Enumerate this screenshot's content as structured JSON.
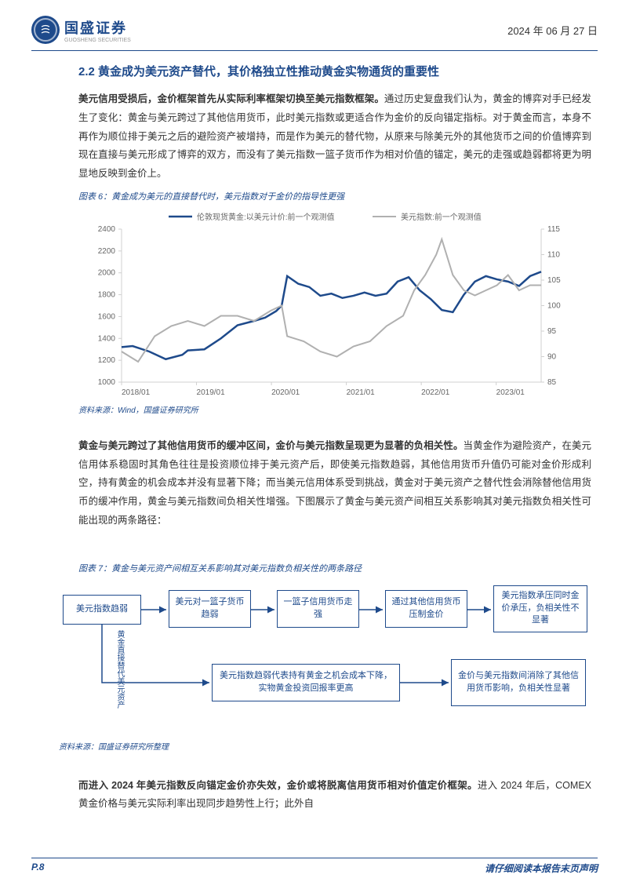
{
  "header": {
    "logo_title": "国盛证券",
    "logo_sub": "GUOSHENG SECURITIES",
    "date": "2024 年 06 月 27 日"
  },
  "section": {
    "title": "2.2 黄金成为美元资产替代，其价格独立性推动黄金实物通货的重要性"
  },
  "para1": {
    "bold": "美元信用受损后，金价框架首先从实际利率框架切换至美元指数框架。",
    "text": "通过历史复盘我们认为，黄金的博弈对手已经发生了变化：黄金与美元跨过了其他信用货币，此时美元指数或更适合作为金价的反向锚定指标。对于黄金而言，本身不再作为顺位排于美元之后的避险资产被增持，而是作为美元的替代物，从原来与除美元外的其他货币之间的价值博弈到现在直接与美元形成了博弈的双方，而没有了美元指数一篮子货币作为相对价值的锚定，美元的走强或趋弱都将更为明显地反映到金价上。"
  },
  "figure6": {
    "caption": "图表 6：黄金成为美元的直接替代时，美元指数对于金价的指导性更强",
    "source": "资料来源：Wind，国盛证券研究所",
    "chart": {
      "type": "line",
      "series": [
        {
          "name": "伦敦现货黄金:以美元计价:前一个观测值",
          "color": "#1e4a8b",
          "width": 2.5
        },
        {
          "name": "美元指数:前一个观测值",
          "color": "#b0b0b0",
          "width": 2
        }
      ],
      "x_labels": [
        "2018/01",
        "2019/01",
        "2020/01",
        "2021/01",
        "2022/01",
        "2023/01"
      ],
      "y_left": {
        "min": 1000,
        "max": 2400,
        "step": 200,
        "ticks": [
          1000,
          1200,
          1400,
          1600,
          1800,
          2000,
          2200,
          2400
        ]
      },
      "y_right": {
        "min": 85,
        "max": 115,
        "step": 5,
        "ticks": [
          85,
          90,
          95,
          100,
          105,
          110,
          115
        ]
      },
      "gold_data": [
        [
          0,
          1320
        ],
        [
          2,
          1330
        ],
        [
          5,
          1280
        ],
        [
          8,
          1210
        ],
        [
          11,
          1250
        ],
        [
          12,
          1290
        ],
        [
          15,
          1300
        ],
        [
          18,
          1400
        ],
        [
          21,
          1520
        ],
        [
          24,
          1560
        ],
        [
          26,
          1590
        ],
        [
          28,
          1650
        ],
        [
          29,
          1700
        ],
        [
          30,
          1970
        ],
        [
          32,
          1900
        ],
        [
          34,
          1870
        ],
        [
          36,
          1790
        ],
        [
          38,
          1810
        ],
        [
          40,
          1770
        ],
        [
          42,
          1790
        ],
        [
          44,
          1820
        ],
        [
          46,
          1790
        ],
        [
          48,
          1810
        ],
        [
          50,
          1920
        ],
        [
          52,
          1960
        ],
        [
          54,
          1840
        ],
        [
          56,
          1760
        ],
        [
          58,
          1660
        ],
        [
          60,
          1640
        ],
        [
          62,
          1800
        ],
        [
          64,
          1920
        ],
        [
          66,
          1970
        ],
        [
          68,
          1940
        ],
        [
          70,
          1920
        ],
        [
          72,
          1880
        ],
        [
          74,
          1970
        ],
        [
          76,
          2010
        ]
      ],
      "dxy_data": [
        [
          0,
          91
        ],
        [
          3,
          89
        ],
        [
          6,
          94
        ],
        [
          9,
          96
        ],
        [
          12,
          97
        ],
        [
          15,
          96
        ],
        [
          18,
          98
        ],
        [
          21,
          98
        ],
        [
          24,
          97
        ],
        [
          27,
          99
        ],
        [
          29,
          100
        ],
        [
          30,
          94
        ],
        [
          33,
          93
        ],
        [
          36,
          91
        ],
        [
          39,
          90
        ],
        [
          42,
          92
        ],
        [
          45,
          93
        ],
        [
          48,
          96
        ],
        [
          51,
          98
        ],
        [
          53,
          103
        ],
        [
          55,
          106
        ],
        [
          57,
          110
        ],
        [
          58,
          113
        ],
        [
          60,
          106
        ],
        [
          62,
          103
        ],
        [
          64,
          102
        ],
        [
          66,
          103
        ],
        [
          68,
          104
        ],
        [
          70,
          106
        ],
        [
          72,
          103
        ],
        [
          74,
          104
        ],
        [
          76,
          104
        ]
      ],
      "x_range": 76,
      "background_color": "#ffffff",
      "axis_color": "#d0d0d0",
      "text_color": "#666666",
      "font_size": 10
    }
  },
  "para2": {
    "bold": "黄金与美元跨过了其他信用货币的缓冲区间，金价与美元指数呈现更为显著的负相关性。",
    "text": "当黄金作为避险资产，在美元信用体系稳固时其角色往往是投资顺位排于美元资产后，即使美元指数趋弱，其他信用货币升值仍可能对金价形成利空，持有黄金的机会成本并没有显著下降；而当美元信用体系受到挑战，黄金对于美元资产之替代性会消除替他信用货币的缓冲作用，黄金与美元指数间负相关性增强。下图展示了黄金与美元资产间相互关系影响其对美元指数负相关性可能出现的两条路径："
  },
  "figure7": {
    "caption": "图表 7：黄金与美元资产间相互关系影响其对美元指数负相关性的两条路径",
    "source": "资料来源：国盛证券研究所整理",
    "flow": {
      "box1": "美元指数趋弱",
      "box2": "美元对一篮子货币趋弱",
      "box3": "一篮子信用货币走强",
      "box4": "通过其他信用货币压制金价",
      "box5": "美元指数承压同时金价承压，负相关性不显著",
      "box6": "美元指数趋弱代表持有黄金之机会成本下降，实物黄金投资回报率更高",
      "box7": "金价与美元指数间消除了其他信用货币影响，负相关性显著",
      "vlabel": "黄金直接替代美元资产",
      "box_border": "#1e4a8b",
      "text_color": "#1e4a8b"
    }
  },
  "para3": {
    "bold": "而进入 2024 年美元指数反向锚定金价亦失效，金价或将脱离信用货币相对价值定价框架。",
    "text": "进入 2024 年后，COMEX 黄金价格与美元实际利率出现同步趋势性上行；此外自"
  },
  "footer": {
    "page": "P.8",
    "disclaimer": "请仔细阅读本报告末页声明"
  }
}
